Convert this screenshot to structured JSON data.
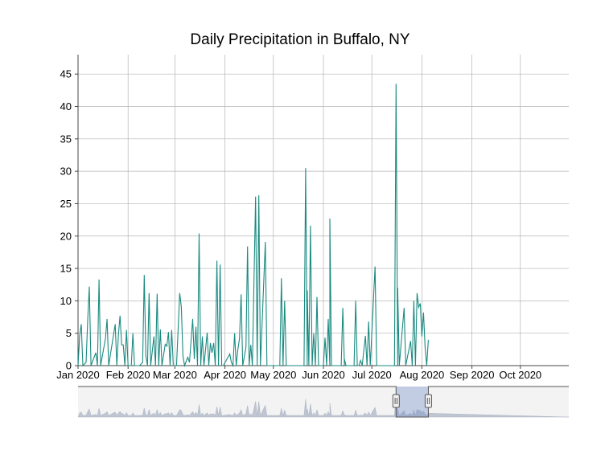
{
  "chart_data": {
    "type": "line",
    "title": "Daily Precipitation in Buffalo, NY",
    "xlabel": "",
    "ylabel": "",
    "x_start": "2020-01-01",
    "x_end": "2020-10-31",
    "ylim": [
      0,
      48
    ],
    "y_ticks": [
      0,
      5,
      10,
      15,
      20,
      25,
      30,
      35,
      40,
      45
    ],
    "x_ticks": [
      {
        "date": "2020-01-01",
        "label": "Jan 2020"
      },
      {
        "date": "2020-02-01",
        "label": "Feb 2020"
      },
      {
        "date": "2020-03-01",
        "label": "Mar 2020"
      },
      {
        "date": "2020-04-01",
        "label": "Apr 2020"
      },
      {
        "date": "2020-05-01",
        "label": "May 2020"
      },
      {
        "date": "2020-06-01",
        "label": "Jun 2020"
      },
      {
        "date": "2020-07-01",
        "label": "Jul 2020"
      },
      {
        "date": "2020-08-01",
        "label": "Aug 2020"
      },
      {
        "date": "2020-09-01",
        "label": "Sep 2020"
      },
      {
        "date": "2020-10-01",
        "label": "Oct 2020"
      }
    ],
    "grid": true,
    "line_color": "#1a8a80",
    "series": [
      {
        "values": [
          {
            "x": "2020-01-02",
            "y": 4.6
          },
          {
            "x": "2020-01-03",
            "y": 6.4
          },
          {
            "x": "2020-01-04",
            "y": 0
          },
          {
            "x": "2020-01-06",
            "y": 0.5
          },
          {
            "x": "2020-01-07",
            "y": 7.0
          },
          {
            "x": "2020-01-08",
            "y": 12.2
          },
          {
            "x": "2020-01-09",
            "y": 0
          },
          {
            "x": "2020-01-12",
            "y": 2.0
          },
          {
            "x": "2020-01-13",
            "y": 0
          },
          {
            "x": "2020-01-14",
            "y": 13.3
          },
          {
            "x": "2020-01-15",
            "y": 0
          },
          {
            "x": "2020-01-18",
            "y": 4.2
          },
          {
            "x": "2020-01-19",
            "y": 7.2
          },
          {
            "x": "2020-01-20",
            "y": 0
          },
          {
            "x": "2020-01-24",
            "y": 6.4
          },
          {
            "x": "2020-01-25",
            "y": 0
          },
          {
            "x": "2020-01-26",
            "y": 4.8
          },
          {
            "x": "2020-01-27",
            "y": 7.7
          },
          {
            "x": "2020-01-28",
            "y": 3.2
          },
          {
            "x": "2020-01-29",
            "y": 3.2
          },
          {
            "x": "2020-01-30",
            "y": 0
          },
          {
            "x": "2020-01-31",
            "y": 5.5
          },
          {
            "x": "2020-02-01",
            "y": 0
          },
          {
            "x": "2020-02-03",
            "y": 0
          },
          {
            "x": "2020-02-04",
            "y": 5.0
          },
          {
            "x": "2020-02-05",
            "y": 0
          },
          {
            "x": "2020-02-08",
            "y": 0
          },
          {
            "x": "2020-02-10",
            "y": 0.5
          },
          {
            "x": "2020-02-11",
            "y": 14.0
          },
          {
            "x": "2020-02-12",
            "y": 1.5
          },
          {
            "x": "2020-02-13",
            "y": 0
          },
          {
            "x": "2020-02-14",
            "y": 11.2
          },
          {
            "x": "2020-02-15",
            "y": 0
          },
          {
            "x": "2020-02-17",
            "y": 4.5
          },
          {
            "x": "2020-02-18",
            "y": 0
          },
          {
            "x": "2020-02-19",
            "y": 11.1
          },
          {
            "x": "2020-02-20",
            "y": 0
          },
          {
            "x": "2020-02-21",
            "y": 5.6
          },
          {
            "x": "2020-02-22",
            "y": 0
          },
          {
            "x": "2020-02-24",
            "y": 3.3
          },
          {
            "x": "2020-02-25",
            "y": 3.0
          },
          {
            "x": "2020-02-26",
            "y": 5.2
          },
          {
            "x": "2020-02-27",
            "y": 0
          },
          {
            "x": "2020-02-28",
            "y": 5.5
          },
          {
            "x": "2020-02-29",
            "y": 0
          },
          {
            "x": "2020-03-02",
            "y": 0
          },
          {
            "x": "2020-03-03",
            "y": 5.6
          },
          {
            "x": "2020-03-04",
            "y": 11.2
          },
          {
            "x": "2020-03-05",
            "y": 9.0
          },
          {
            "x": "2020-03-06",
            "y": 1.5
          },
          {
            "x": "2020-03-07",
            "y": 0
          },
          {
            "x": "2020-03-09",
            "y": 1.3
          },
          {
            "x": "2020-03-10",
            "y": 0.5
          },
          {
            "x": "2020-03-12",
            "y": 7.2
          },
          {
            "x": "2020-03-13",
            "y": 1.0
          },
          {
            "x": "2020-03-14",
            "y": 6.0
          },
          {
            "x": "2020-03-15",
            "y": 0
          },
          {
            "x": "2020-03-16",
            "y": 20.4
          },
          {
            "x": "2020-03-17",
            "y": 0
          },
          {
            "x": "2020-03-18",
            "y": 4.5
          },
          {
            "x": "2020-03-19",
            "y": 0
          },
          {
            "x": "2020-03-20",
            "y": 2.5
          },
          {
            "x": "2020-03-21",
            "y": 5.1
          },
          {
            "x": "2020-03-22",
            "y": 0
          },
          {
            "x": "2020-03-23",
            "y": 3.5
          },
          {
            "x": "2020-03-24",
            "y": 2.0
          },
          {
            "x": "2020-03-25",
            "y": 3.5
          },
          {
            "x": "2020-03-26",
            "y": 0
          },
          {
            "x": "2020-03-27",
            "y": 16.2
          },
          {
            "x": "2020-03-28",
            "y": 0
          },
          {
            "x": "2020-03-29",
            "y": 15.6
          },
          {
            "x": "2020-03-30",
            "y": 0
          },
          {
            "x": "2020-03-31",
            "y": 0
          },
          {
            "x": "2020-04-04",
            "y": 1.8
          },
          {
            "x": "2020-04-05",
            "y": 0.5
          },
          {
            "x": "2020-04-06",
            "y": 0
          },
          {
            "x": "2020-04-07",
            "y": 5.0
          },
          {
            "x": "2020-04-08",
            "y": 0
          },
          {
            "x": "2020-04-09",
            "y": 2.5
          },
          {
            "x": "2020-04-10",
            "y": 4.2
          },
          {
            "x": "2020-04-11",
            "y": 11.0
          },
          {
            "x": "2020-04-12",
            "y": 0
          },
          {
            "x": "2020-04-14",
            "y": 2.8
          },
          {
            "x": "2020-04-15",
            "y": 18.4
          },
          {
            "x": "2020-04-16",
            "y": 0
          },
          {
            "x": "2020-04-17",
            "y": 3.2
          },
          {
            "x": "2020-04-18",
            "y": 0
          },
          {
            "x": "2020-04-20",
            "y": 26.1
          },
          {
            "x": "2020-04-21",
            "y": 0
          },
          {
            "x": "2020-04-22",
            "y": 26.3
          },
          {
            "x": "2020-04-23",
            "y": 0
          },
          {
            "x": "2020-04-26",
            "y": 19.1
          },
          {
            "x": "2020-04-27",
            "y": 0
          },
          {
            "x": "2020-05-05",
            "y": 0
          },
          {
            "x": "2020-05-06",
            "y": 13.5
          },
          {
            "x": "2020-05-07",
            "y": 0
          },
          {
            "x": "2020-05-08",
            "y": 10.0
          },
          {
            "x": "2020-05-09",
            "y": 0
          },
          {
            "x": "2020-05-20",
            "y": 0
          },
          {
            "x": "2020-05-21",
            "y": 30.5
          },
          {
            "x": "2020-05-22",
            "y": 0
          },
          {
            "x": "2020-05-22",
            "y": 11.6
          },
          {
            "x": "2020-05-23",
            "y": 0
          },
          {
            "x": "2020-05-24",
            "y": 21.6
          },
          {
            "x": "2020-05-25",
            "y": 0
          },
          {
            "x": "2020-05-26",
            "y": 5.0
          },
          {
            "x": "2020-05-27",
            "y": 0
          },
          {
            "x": "2020-05-28",
            "y": 10.6
          },
          {
            "x": "2020-05-29",
            "y": 0
          },
          {
            "x": "2020-06-01",
            "y": 0
          },
          {
            "x": "2020-06-02",
            "y": 4.3
          },
          {
            "x": "2020-06-03",
            "y": 0
          },
          {
            "x": "2020-06-04",
            "y": 7.2
          },
          {
            "x": "2020-06-05",
            "y": 0
          },
          {
            "x": "2020-06-05",
            "y": 22.7
          },
          {
            "x": "2020-06-06",
            "y": 0
          },
          {
            "x": "2020-06-12",
            "y": 0
          },
          {
            "x": "2020-06-13",
            "y": 8.9
          },
          {
            "x": "2020-06-14",
            "y": 0
          },
          {
            "x": "2020-06-14",
            "y": 1.0
          },
          {
            "x": "2020-06-15",
            "y": 0
          },
          {
            "x": "2020-06-20",
            "y": 0
          },
          {
            "x": "2020-06-21",
            "y": 10.0
          },
          {
            "x": "2020-06-22",
            "y": 0
          },
          {
            "x": "2020-06-23",
            "y": 0
          },
          {
            "x": "2020-06-24",
            "y": 0.8
          },
          {
            "x": "2020-06-25",
            "y": 0
          },
          {
            "x": "2020-06-27",
            "y": 4.6
          },
          {
            "x": "2020-06-28",
            "y": 0
          },
          {
            "x": "2020-06-29",
            "y": 6.8
          },
          {
            "x": "2020-06-30",
            "y": 0
          },
          {
            "x": "2020-07-03",
            "y": 15.3
          },
          {
            "x": "2020-07-04",
            "y": 0
          },
          {
            "x": "2020-07-15",
            "y": 0
          },
          {
            "x": "2020-07-16",
            "y": 43.5
          },
          {
            "x": "2020-07-17",
            "y": 0
          },
          {
            "x": "2020-07-17",
            "y": 12.0
          },
          {
            "x": "2020-07-18",
            "y": 0
          },
          {
            "x": "2020-07-21",
            "y": 8.9
          },
          {
            "x": "2020-07-22",
            "y": 0
          },
          {
            "x": "2020-07-25",
            "y": 3.8
          },
          {
            "x": "2020-07-26",
            "y": 0
          },
          {
            "x": "2020-07-27",
            "y": 10.0
          },
          {
            "x": "2020-07-28",
            "y": 0
          },
          {
            "x": "2020-07-29",
            "y": 11.2
          },
          {
            "x": "2020-07-30",
            "y": 9.0
          },
          {
            "x": "2020-07-31",
            "y": 9.6
          },
          {
            "x": "2020-08-01",
            "y": 4.5
          },
          {
            "x": "2020-08-02",
            "y": 8.2
          },
          {
            "x": "2020-08-03",
            "y": 2.8
          },
          {
            "x": "2020-08-04",
            "y": 0
          },
          {
            "x": "2020-08-05",
            "y": 4.0
          }
        ]
      }
    ]
  },
  "navigator": {
    "window_start": "2020-07-16",
    "window_end": "2020-08-05"
  }
}
